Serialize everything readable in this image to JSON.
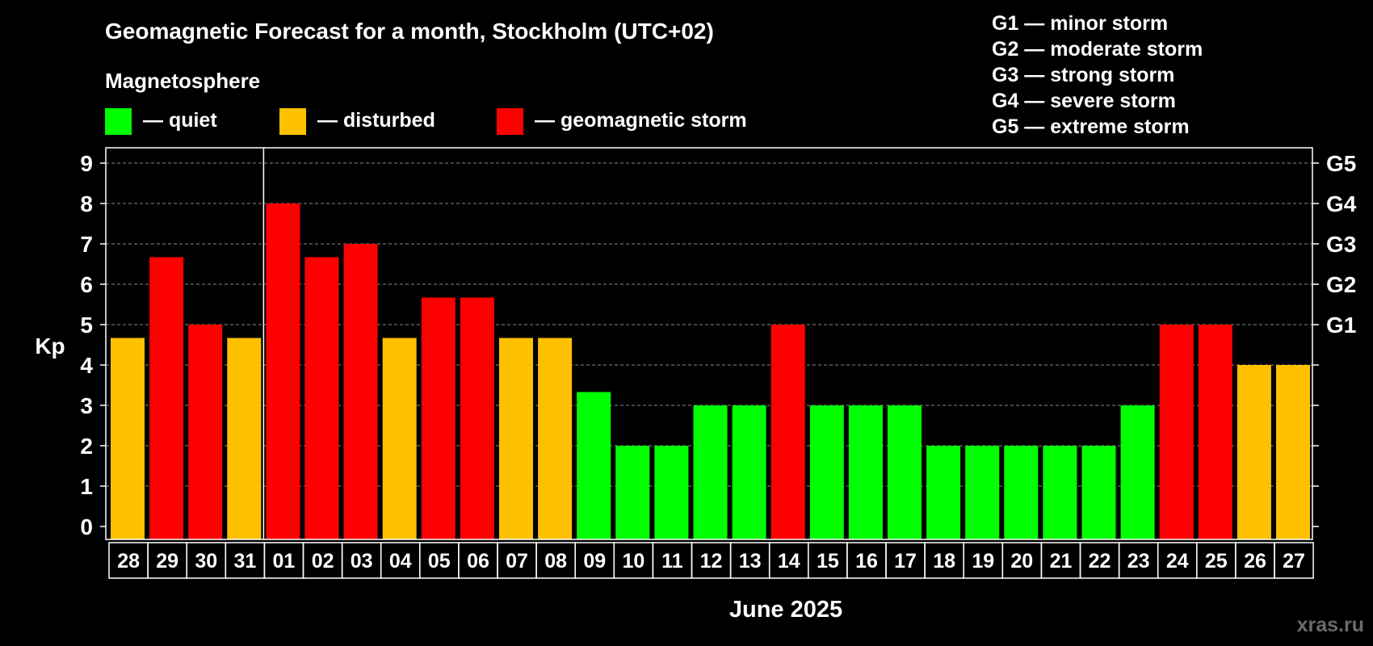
{
  "chart_data": {
    "type": "bar",
    "title": "Geomagnetic Forecast for a month, Stockholm (UTC+02)",
    "legend_title": "Magnetosphere",
    "legend": [
      {
        "key": "quiet",
        "label": "— quiet",
        "color": "#00ff00"
      },
      {
        "key": "disturbed",
        "label": "— disturbed",
        "color": "#ffc000"
      },
      {
        "key": "storm",
        "label": "— geomagnetic storm",
        "color": "#ff0000"
      }
    ],
    "storm_levels": [
      "G1 — minor storm",
      "G2 — moderate storm",
      "G3 — strong storm",
      "G4 — severe storm",
      "G5 — extreme storm"
    ],
    "ylabel": "Kp",
    "xlabel": "June 2025",
    "ylim": [
      0,
      9
    ],
    "yticks": [
      "0",
      "1",
      "2",
      "3",
      "4",
      "5",
      "6",
      "7",
      "8",
      "9"
    ],
    "right_ticks": [
      {
        "kp": 5,
        "label": "G1"
      },
      {
        "kp": 6,
        "label": "G2"
      },
      {
        "kp": 7,
        "label": "G3"
      },
      {
        "kp": 8,
        "label": "G4"
      },
      {
        "kp": 9,
        "label": "G5"
      },
      {
        "kp": 4,
        "label": ""
      },
      {
        "kp": 3,
        "label": ""
      },
      {
        "kp": 2,
        "label": ""
      },
      {
        "kp": 1,
        "label": ""
      },
      {
        "kp": 0,
        "label": ""
      }
    ],
    "grid": true,
    "month_boundary_after": "31",
    "categories": [
      "28",
      "29",
      "30",
      "31",
      "01",
      "02",
      "03",
      "04",
      "05",
      "06",
      "07",
      "08",
      "09",
      "10",
      "11",
      "12",
      "13",
      "14",
      "15",
      "16",
      "17",
      "18",
      "19",
      "20",
      "21",
      "22",
      "23",
      "24",
      "25",
      "26",
      "27"
    ],
    "values": [
      4.67,
      6.67,
      5,
      4.67,
      8,
      6.67,
      7,
      4.67,
      5.67,
      5.67,
      4.67,
      4.67,
      3.33,
      2,
      2,
      3,
      3,
      5,
      3,
      3,
      3,
      2,
      2,
      2,
      2,
      2,
      3,
      5,
      5,
      4,
      4
    ],
    "status": [
      "disturbed",
      "storm",
      "storm",
      "disturbed",
      "storm",
      "storm",
      "storm",
      "disturbed",
      "storm",
      "storm",
      "disturbed",
      "disturbed",
      "quiet",
      "quiet",
      "quiet",
      "quiet",
      "quiet",
      "storm",
      "quiet",
      "quiet",
      "quiet",
      "quiet",
      "quiet",
      "quiet",
      "quiet",
      "quiet",
      "quiet",
      "storm",
      "storm",
      "disturbed",
      "disturbed"
    ]
  },
  "watermark": "xras.ru"
}
